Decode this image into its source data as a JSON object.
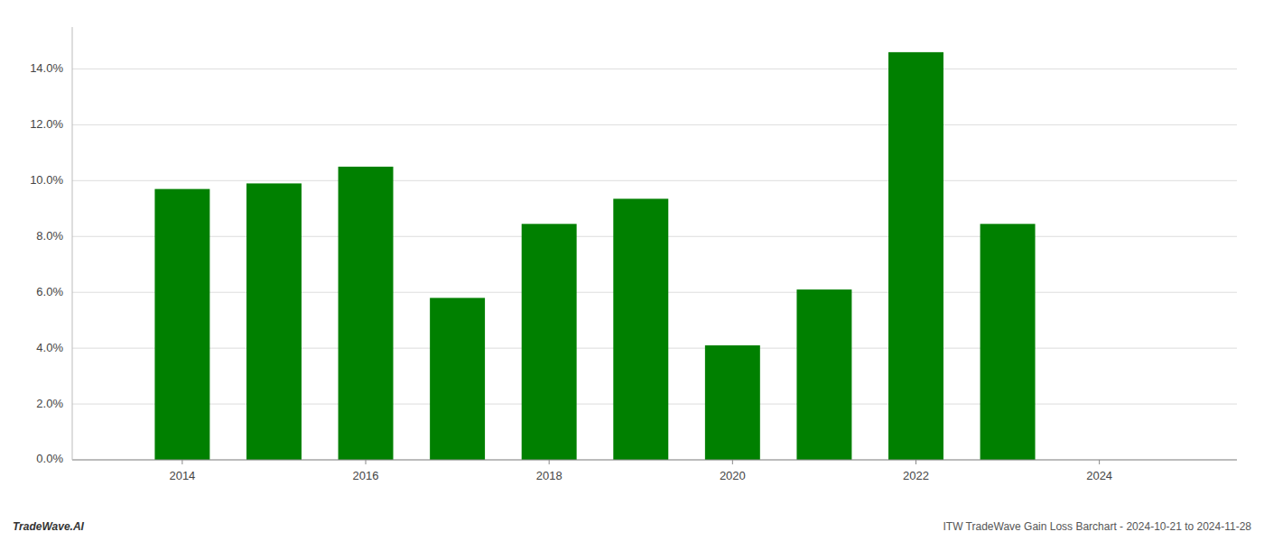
{
  "chart_data": {
    "type": "bar",
    "x": [
      2014,
      2015,
      2016,
      2017,
      2018,
      2019,
      2020,
      2021,
      2022,
      2023
    ],
    "values": [
      0.097,
      0.099,
      0.105,
      0.058,
      0.0845,
      0.0935,
      0.041,
      0.061,
      0.146,
      0.0845
    ],
    "color": "#008000",
    "xlim": [
      2012.8,
      2025.5
    ],
    "xticks": [
      2014,
      2016,
      2018,
      2020,
      2022,
      2024
    ],
    "ylim": [
      0.0,
      0.155
    ],
    "yticks": [
      {
        "value": 0.0,
        "label": "0.0%"
      },
      {
        "value": 0.02,
        "label": "2.0%"
      },
      {
        "value": 0.04,
        "label": "4.0%"
      },
      {
        "value": 0.06,
        "label": "6.0%"
      },
      {
        "value": 0.08,
        "label": "8.0%"
      },
      {
        "value": 0.1,
        "label": "10.0%"
      },
      {
        "value": 0.12,
        "label": "12.0%"
      },
      {
        "value": 0.14,
        "label": "14.0%"
      }
    ],
    "grid": true,
    "annotations": [
      "TradeWave.AI",
      "ITW TradeWave Gain Loss Barchart - 2024-10-21 to 2024-11-28"
    ]
  }
}
